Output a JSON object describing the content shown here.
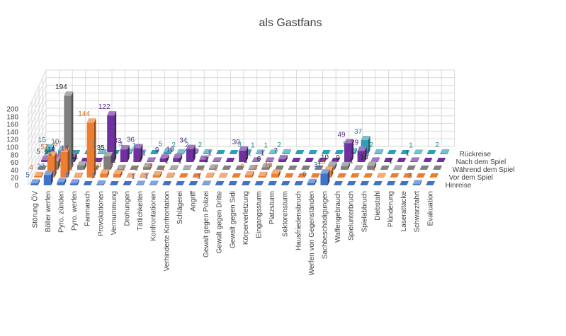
{
  "chart_data": {
    "type": "bar",
    "variant": "3d-column",
    "title": "als Gastfans",
    "ylim": [
      0,
      200
    ],
    "yticks": [
      0,
      20,
      40,
      60,
      80,
      100,
      120,
      140,
      160,
      180,
      200
    ],
    "grid": true,
    "categories": [
      "Störung ÖV",
      "Böller werfen",
      "Pyro. zünden",
      "Pyro. werfen",
      "Fanmarsch",
      "Provokationen",
      "Vermummung",
      "Drohungen",
      "Tätlichkeiten",
      "Konfrontationen",
      "Verhinderte Konfrontation",
      "Schlägerei",
      "Angriff",
      "Gewalt gegen Polizei",
      "Gewalt gegen Dritte",
      "Gewalt gegen Sidi",
      "Körperverletzung",
      "Eingangssturm",
      "Platzsturm",
      "Sektorensturm",
      "Hausfriedensbruch",
      "Werfen von Gegenständen",
      "Sachbeschädigungen",
      "Waffengebrauch",
      "Spielunterbruch",
      "Spielabbruch",
      "Diebstahl",
      "Plünderung",
      "Laserattacke",
      "Schwarzfahrt",
      "Evakuation"
    ],
    "series": [
      {
        "name": "Hinreise",
        "color": "#4472c4",
        "values": [
          5,
          27,
          8,
          5,
          null,
          2,
          null,
          null,
          1,
          1,
          null,
          null,
          null,
          1,
          null,
          null,
          null,
          null,
          null,
          null,
          null,
          6,
          31,
          null,
          null,
          null,
          null,
          null,
          null,
          3,
          null
        ]
      },
      {
        "name": "Vor dem Spiel",
        "color": "#ed7d31",
        "values": [
          4,
          57,
          67,
          2,
          144,
          10,
          9,
          1,
          2,
          6,
          2,
          null,
          null,
          2,
          1,
          null,
          6,
          4,
          10,
          null,
          null,
          null,
          18,
          null,
          null,
          null,
          1,
          null,
          null,
          null,
          null
        ]
      },
      {
        "name": "Während dem Spiel",
        "color": "#7f7f7f",
        "values": [
          null,
          21,
          194,
          11,
          null,
          35,
          2,
          null,
          7,
          null,
          1,
          1,
          null,
          3,
          null,
          null,
          2,
          6,
          null,
          null,
          null,
          null,
          10,
          9,
          1,
          10,
          null,
          1,
          null,
          null,
          null
        ]
      },
      {
        "name": "Nach dem Spiel",
        "color": "#7030a0",
        "values": [
          5,
          10,
          14,
          null,
          null,
          122,
          33,
          36,
          1,
          9,
          10,
          34,
          6,
          1,
          null,
          30,
          1,
          1,
          7,
          null,
          null,
          null,
          null,
          49,
          29,
          1,
          null,
          null,
          1,
          null,
          null
        ]
      },
      {
        "name": "Rückreise",
        "color": "#2e9fb3",
        "values": [
          15,
          10,
          null,
          null,
          2,
          null,
          4,
          1,
          null,
          5,
          2,
          2,
          2,
          null,
          null,
          3,
          1,
          1,
          2,
          null,
          null,
          null,
          null,
          5,
          37,
          2,
          null,
          null,
          1,
          null,
          2
        ]
      }
    ]
  }
}
